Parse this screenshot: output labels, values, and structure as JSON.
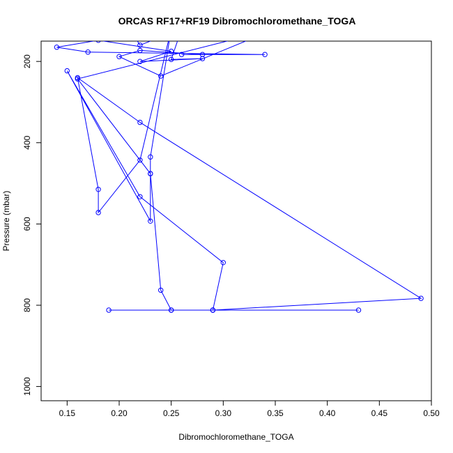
{
  "chart_data": {
    "type": "line",
    "title": "ORCAS RF17+RF19 Dibromochloromethane_TOGA",
    "xlabel": "Dibromochloromethane_TOGA",
    "ylabel": "Pressure (mbar)",
    "xlim": [
      0.125,
      0.5
    ],
    "ylim": [
      1035,
      150
    ],
    "y_reversed": true,
    "x_ticks": [
      0.15,
      0.2,
      0.25,
      0.3,
      0.35,
      0.4,
      0.45,
      0.5
    ],
    "x_tick_labels": [
      "0.15",
      "0.20",
      "0.25",
      "0.30",
      "0.35",
      "0.40",
      "0.45",
      "0.50"
    ],
    "y_ticks": [
      200,
      400,
      600,
      800,
      1000
    ],
    "y_tick_labels": [
      "200",
      "400",
      "600",
      "800",
      "1000"
    ],
    "grid": false,
    "legend": "none",
    "color": "#0000ff",
    "series": [
      {
        "x": [
          0.43,
          0.29,
          0.25,
          0.19,
          0.29,
          0.49,
          0.22,
          0.16,
          0.18,
          0.18,
          0.22,
          0.25,
          0.23,
          0.23,
          0.24,
          0.25,
          0.29,
          0.3,
          0.22,
          0.15,
          0.23,
          0.23,
          0.16,
          0.35,
          0.24,
          0.2,
          0.22,
          0.28,
          0.26,
          0.34,
          0.17,
          0.14,
          0.18,
          0.25,
          0.22,
          0.28,
          0.25,
          0.26,
          0.22,
          0.21
        ],
        "y": [
          812,
          812,
          812,
          812,
          812,
          783,
          350,
          240,
          515,
          572,
          443,
          120,
          435,
          476,
          763,
          812,
          812,
          695,
          533,
          223,
          593,
          476,
          243,
          120,
          236,
          188,
          173,
          183,
          183,
          183,
          177,
          165,
          148,
          175,
          200,
          193,
          195,
          120,
          160,
          120
        ]
      }
    ]
  }
}
